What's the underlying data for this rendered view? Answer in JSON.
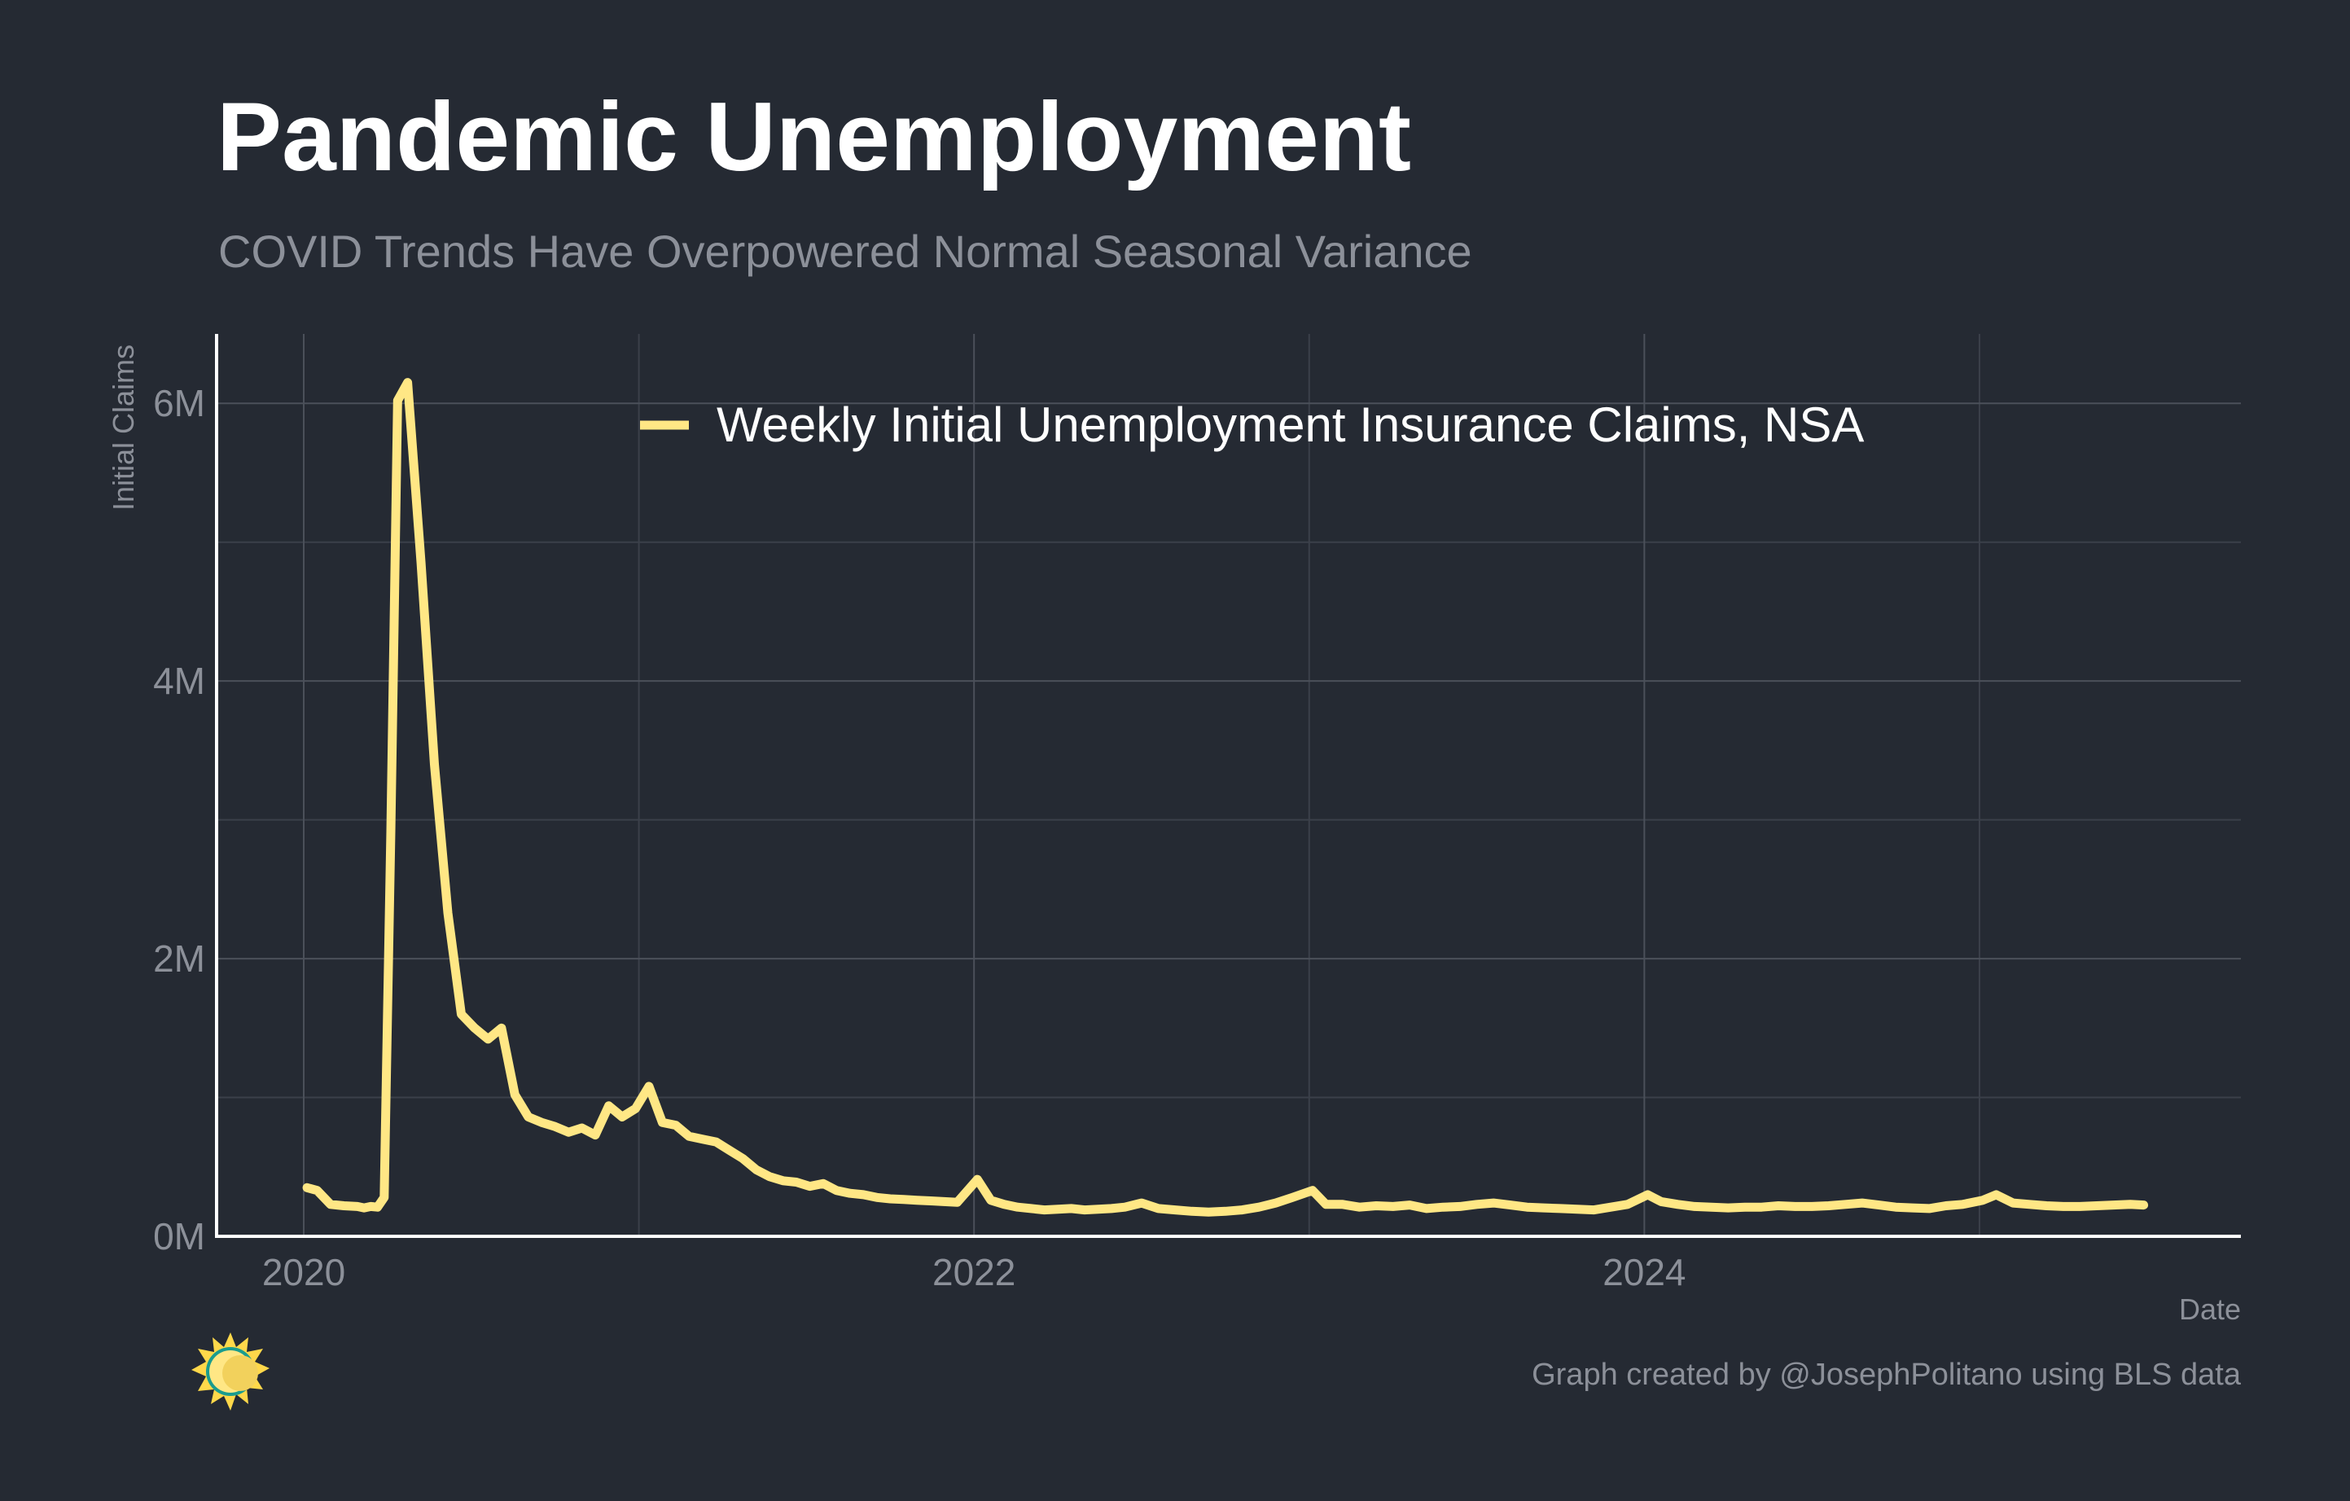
{
  "chart_data": {
    "type": "line",
    "title": "Pandemic Unemployment",
    "subtitle": "COVID Trends Have Overpowered Normal Seasonal Variance",
    "xlabel": "Date",
    "ylabel": "Initial Claims",
    "xlim": [
      2019.74,
      2025.78
    ],
    "ylim": [
      0,
      6500000
    ],
    "x_ticks": [
      {
        "value": 2020,
        "label": "2020"
      },
      {
        "value": 2022,
        "label": "2022"
      },
      {
        "value": 2024,
        "label": "2024"
      }
    ],
    "y_ticks": [
      {
        "value": 0,
        "label": "0M"
      },
      {
        "value": 2000000,
        "label": "2M"
      },
      {
        "value": 4000000,
        "label": "4M"
      },
      {
        "value": 6000000,
        "label": "6M"
      }
    ],
    "grid": true,
    "legend_position": "top",
    "caption": "Graph created by @JosephPolitano using BLS data",
    "colors": {
      "background": "#252a33",
      "series": "#ffe785",
      "text": "#ffffff",
      "muted": "#8c9099"
    },
    "logo_icon": "sun-logo-icon",
    "series": [
      {
        "name": "Weekly Initial Unemployment Insurance Claims, NSA",
        "x": [
          2020.01,
          2020.04,
          2020.08,
          2020.12,
          2020.16,
          2020.18,
          2020.2,
          2020.22,
          2020.24,
          2020.26,
          2020.28,
          2020.31,
          2020.35,
          2020.39,
          2020.43,
          2020.47,
          2020.51,
          2020.55,
          2020.59,
          2020.63,
          2020.67,
          2020.71,
          2020.75,
          2020.79,
          2020.83,
          2020.87,
          2020.91,
          2020.95,
          2020.99,
          2021.03,
          2021.07,
          2021.11,
          2021.15,
          2021.19,
          2021.23,
          2021.27,
          2021.31,
          2021.35,
          2021.39,
          2021.43,
          2021.47,
          2021.51,
          2021.55,
          2021.59,
          2021.63,
          2021.67,
          2021.71,
          2021.75,
          2021.79,
          2021.83,
          2021.87,
          2021.91,
          2021.95,
          2022.01,
          2022.05,
          2022.09,
          2022.13,
          2022.17,
          2022.21,
          2022.25,
          2022.29,
          2022.33,
          2022.37,
          2022.41,
          2022.45,
          2022.5,
          2022.55,
          2022.6,
          2022.65,
          2022.7,
          2022.75,
          2022.8,
          2022.85,
          2022.9,
          2022.95,
          2023.01,
          2023.05,
          2023.1,
          2023.15,
          2023.2,
          2023.25,
          2023.3,
          2023.35,
          2023.4,
          2023.45,
          2023.5,
          2023.55,
          2023.6,
          2023.65,
          2023.7,
          2023.75,
          2023.8,
          2023.85,
          2023.9,
          2023.95,
          2024.01,
          2024.05,
          2024.1,
          2024.15,
          2024.2,
          2024.25,
          2024.3,
          2024.35,
          2024.4,
          2024.45,
          2024.5,
          2024.55,
          2024.6,
          2024.65,
          2024.7,
          2024.75,
          2024.8,
          2024.85,
          2024.9,
          2024.95,
          2025.01,
          2025.05,
          2025.1,
          2025.15,
          2025.2,
          2025.25,
          2025.3,
          2025.35,
          2025.4,
          2025.45,
          2025.49
        ],
        "y": [
          350000,
          330000,
          230000,
          220000,
          215000,
          205000,
          215000,
          210000,
          280000,
          2920000,
          6020000,
          6150000,
          4850000,
          3400000,
          2330000,
          1600000,
          1500000,
          1420000,
          1500000,
          1020000,
          860000,
          820000,
          790000,
          750000,
          780000,
          730000,
          940000,
          860000,
          920000,
          1080000,
          820000,
          800000,
          720000,
          700000,
          680000,
          620000,
          560000,
          480000,
          430000,
          400000,
          390000,
          360000,
          380000,
          330000,
          310000,
          300000,
          280000,
          270000,
          265000,
          260000,
          255000,
          250000,
          245000,
          410000,
          260000,
          230000,
          210000,
          200000,
          190000,
          195000,
          200000,
          190000,
          195000,
          200000,
          210000,
          240000,
          200000,
          190000,
          180000,
          175000,
          180000,
          190000,
          210000,
          240000,
          280000,
          330000,
          230000,
          230000,
          210000,
          220000,
          215000,
          225000,
          200000,
          210000,
          215000,
          230000,
          240000,
          225000,
          210000,
          205000,
          200000,
          195000,
          190000,
          210000,
          230000,
          300000,
          250000,
          230000,
          215000,
          210000,
          205000,
          210000,
          210000,
          220000,
          215000,
          215000,
          220000,
          230000,
          240000,
          225000,
          210000,
          205000,
          200000,
          220000,
          230000,
          260000,
          300000,
          240000,
          230000,
          220000,
          215000,
          215000,
          220000,
          225000,
          230000,
          225000
        ]
      }
    ]
  }
}
